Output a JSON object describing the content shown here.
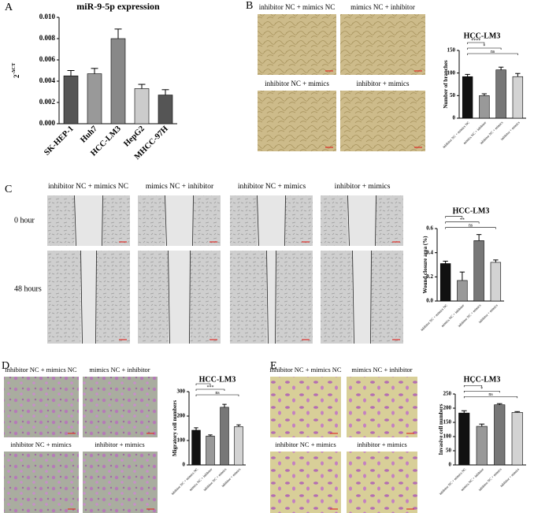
{
  "chart_data": [
    {
      "type": "bar",
      "panel": "A",
      "title": "miR-9-5p expression",
      "ylabel": {
        "base": "2",
        "superscript": "-ΔCT"
      },
      "categories": [
        "SK-HEP-1",
        "Huh7",
        "HCC-LM3",
        "HepG2",
        "MHCC-97H"
      ],
      "values": [
        0.0045,
        0.0047,
        0.008,
        0.0033,
        0.0027
      ],
      "errors": [
        0.0005,
        0.0005,
        0.0009,
        0.0004,
        0.0005
      ],
      "colors": [
        "#555555",
        "#999999",
        "#888888",
        "#cccccc",
        "#555555"
      ],
      "ylim": [
        0,
        0.01
      ],
      "yticks": [
        {
          "value": 0,
          "label": "0.000"
        },
        {
          "value": 0.002,
          "label": "0.002"
        },
        {
          "value": 0.004,
          "label": "0.004"
        },
        {
          "value": 0.006,
          "label": "0.006"
        },
        {
          "value": 0.008,
          "label": "0.008"
        },
        {
          "value": 0.01,
          "label": "0.010"
        }
      ],
      "annotations": []
    },
    {
      "type": "bar",
      "panel": "B",
      "title": "HCC-LM3",
      "ylabel": {
        "base": "Number of branches"
      },
      "categories": [
        "inhibitor NC + mimics NC",
        "mimics NC + inhibitor",
        "inhibitor NC + mimics",
        "inhibitor + mimics"
      ],
      "values": [
        92,
        50,
        107,
        92
      ],
      "errors": [
        5,
        4,
        6,
        7
      ],
      "colors": [
        "#111111",
        "#999999",
        "#777777",
        "#d3d3d3"
      ],
      "ylim": [
        0,
        150
      ],
      "yticks": [
        0,
        50,
        100,
        150
      ],
      "annotations": [
        {
          "text": "****",
          "from": 0,
          "to": 1
        },
        {
          "text": "*",
          "from": 0,
          "to": 2
        },
        {
          "text": "ns",
          "from": 0,
          "to": 3
        }
      ]
    },
    {
      "type": "bar",
      "panel": "C",
      "title": "HCC-LM3",
      "ylabel": {
        "base": "Wound closure area (%)"
      },
      "categories": [
        "inhibitor NC + mimics NC",
        "mimics NC + inhibitor",
        "inhibitor NC + mimics",
        "inhibitor + mimics"
      ],
      "values": [
        0.31,
        0.17,
        0.5,
        0.32
      ],
      "errors": [
        0.02,
        0.07,
        0.05,
        0.02
      ],
      "colors": [
        "#111111",
        "#999999",
        "#777777",
        "#d3d3d3"
      ],
      "ylim": [
        0,
        0.6
      ],
      "yticks": [
        {
          "value": 0,
          "label": "0.0"
        },
        {
          "value": 0.2,
          "label": "0.2"
        },
        {
          "value": 0.4,
          "label": "0.4"
        },
        {
          "value": 0.6,
          "label": "0.6"
        }
      ],
      "annotations": [
        {
          "text": "*",
          "from": 0,
          "to": 1
        },
        {
          "text": "**",
          "from": 0,
          "to": 2
        },
        {
          "text": "ns",
          "from": 0,
          "to": 3
        }
      ]
    },
    {
      "type": "bar",
      "panel": "D",
      "title": "HCC-LM3",
      "ylabel": {
        "base": "Migratory cell numbers"
      },
      "categories": [
        "inhibitor NC + mimics NC",
        "mimics NC + inhibitor",
        "inhibitor NC + mimics",
        "inhibitor + mimics"
      ],
      "values": [
        142,
        118,
        236,
        157
      ],
      "errors": [
        10,
        5,
        12,
        7
      ],
      "colors": [
        "#111111",
        "#999999",
        "#777777",
        "#d3d3d3"
      ],
      "ylim": [
        0,
        300
      ],
      "yticks": [
        0,
        100,
        200,
        300
      ],
      "annotations": [
        {
          "text": "*",
          "from": 0,
          "to": 1
        },
        {
          "text": "***",
          "from": 0,
          "to": 2
        },
        {
          "text": "ns",
          "from": 0,
          "to": 3
        }
      ]
    },
    {
      "type": "bar",
      "panel": "E",
      "title": "HCC-LM3",
      "ylabel": {
        "base": "Invasive cell numbers"
      },
      "categories": [
        "inhibitor NC + mimics NC",
        "mimics NC + inhibitor",
        "inhibitor NC + mimics",
        "inhibitor + mimics"
      ],
      "values": [
        183,
        136,
        212,
        185
      ],
      "errors": [
        8,
        8,
        4,
        3
      ],
      "colors": [
        "#111111",
        "#999999",
        "#777777",
        "#d3d3d3"
      ],
      "ylim": [
        0,
        250
      ],
      "yticks": [
        0,
        50,
        100,
        150,
        200,
        250
      ],
      "annotations": [
        {
          "text": "*",
          "from": 0,
          "to": 1
        },
        {
          "text": "*",
          "from": 0,
          "to": 2
        },
        {
          "text": "ns",
          "from": 0,
          "to": 3
        }
      ]
    }
  ],
  "image_panels": [
    {
      "captions": [
        "inhibitor NC + mimics NC",
        "mimics NC + inhibitor",
        "inhibitor NC + mimics",
        "inhibitor + mimics"
      ]
    },
    {
      "captions": [
        "inhibitor NC + mimics NC",
        "mimics NC + inhibitor",
        "inhibitor NC + mimics",
        "inhibitor + mimics"
      ],
      "row_labels": [
        "0 hour",
        "48 hours"
      ]
    },
    {
      "captions": [
        "inhibitor NC + mimics NC",
        "mimics NC + inhibitor",
        "inhibitor NC + mimics",
        "inhibitor + mimics"
      ]
    },
    {
      "captions": [
        "inhibitor NC + mimics NC",
        "mimics NC + inhibitor",
        "inhibitor NC + mimics",
        "inhibitor + mimics"
      ]
    }
  ]
}
